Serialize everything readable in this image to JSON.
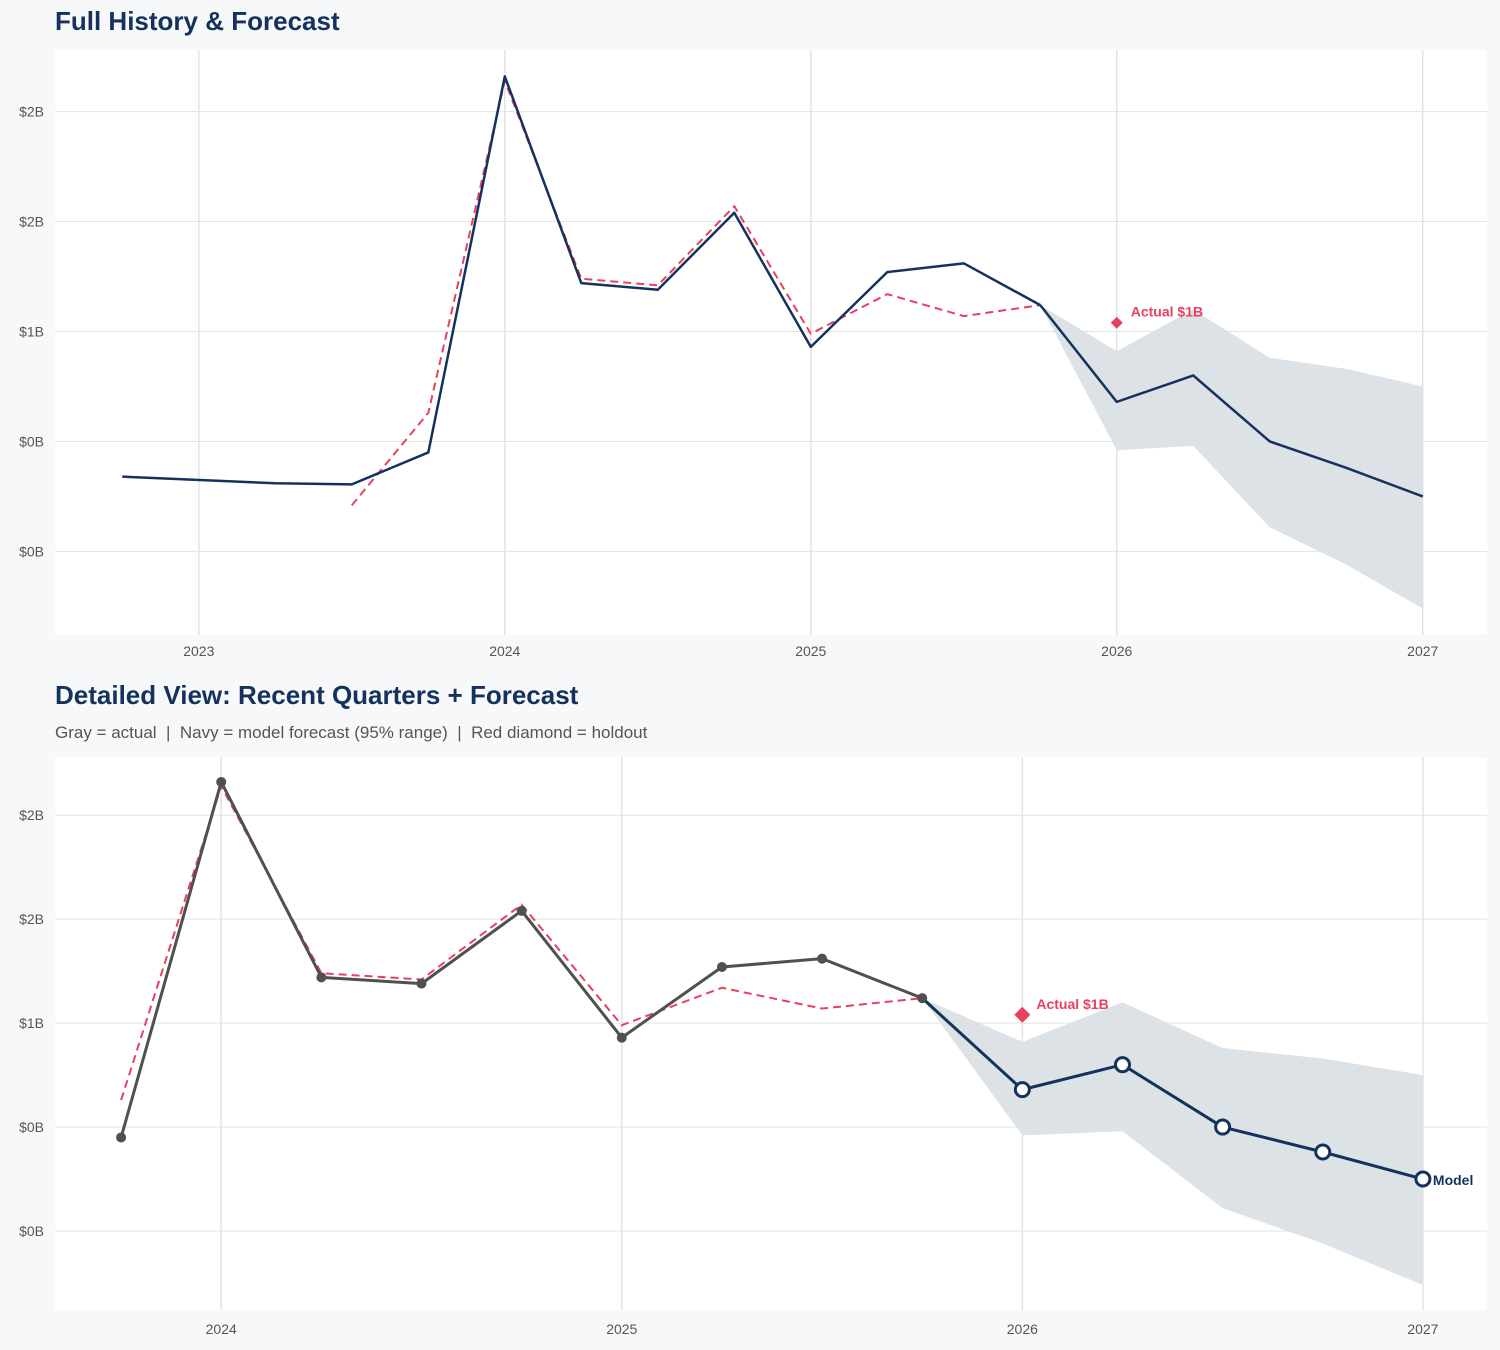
{
  "colors": {
    "navy": "#14325c",
    "red": "#e8415f",
    "gray": "#505050",
    "band": "#dbe0e6",
    "grid": "#e3e3e3"
  },
  "chart_data": [
    {
      "type": "line",
      "title": "Full History & Forecast",
      "subtitle": "",
      "xlim": [
        2022.53,
        2027.21
      ],
      "ylim": [
        -0.38,
        2.28
      ],
      "grid": true,
      "x_ticks": [
        2023,
        2024,
        2025,
        2026,
        2027
      ],
      "x_tick_labels": [
        "2023",
        "2024",
        "2025",
        "2026",
        "2027"
      ],
      "y_ticks": [
        2.0,
        1.5,
        1.0,
        0.5,
        0.0
      ],
      "y_tick_labels": [
        "$2B",
        "$2B",
        "$1B",
        "$0B",
        "$0B"
      ],
      "markers": false,
      "series": [
        {
          "role": "actual",
          "color": "#14325c",
          "style": "solid",
          "x": [
            2022.75,
            2023.25,
            2023.5,
            2023.75,
            2024.0,
            2024.25,
            2024.5,
            2024.75,
            2025.0,
            2025.25,
            2025.5,
            2025.75
          ],
          "y": [
            0.34,
            0.31,
            0.305,
            0.45,
            2.16,
            1.22,
            1.19,
            1.54,
            0.93,
            1.27,
            1.31,
            1.12
          ]
        },
        {
          "role": "fitted",
          "color": "#e8415f",
          "style": "dashed",
          "x": [
            2023.5,
            2023.75,
            2024.0,
            2024.25,
            2024.5,
            2024.75,
            2025.0,
            2025.25,
            2025.5,
            2025.75
          ],
          "y": [
            0.21,
            0.63,
            2.14,
            1.24,
            1.21,
            1.57,
            0.99,
            1.17,
            1.07,
            1.12
          ]
        },
        {
          "role": "forecast",
          "color": "#14325c",
          "style": "solid",
          "x": [
            2025.75,
            2026.0,
            2026.25,
            2026.5,
            2026.75,
            2027.0
          ],
          "y": [
            1.12,
            0.68,
            0.8,
            0.5,
            0.38,
            0.25
          ]
        }
      ],
      "band": {
        "x": [
          2025.75,
          2026.0,
          2026.25,
          2026.5,
          2026.75,
          2027.0
        ],
        "upper": [
          1.12,
          0.91,
          1.1,
          0.88,
          0.83,
          0.75
        ],
        "lower": [
          1.12,
          0.46,
          0.48,
          0.11,
          -0.06,
          -0.26
        ]
      },
      "holdout": {
        "x": 2026.0,
        "y": 1.04,
        "label": "Actual $1B"
      },
      "end_label": ""
    },
    {
      "type": "line",
      "title": "Detailed View: Recent Quarters + Forecast",
      "subtitle": "Gray = actual  |  Navy = model forecast (95% range)  |  Red diamond = holdout",
      "xlim": [
        2023.585,
        2027.16
      ],
      "ylim": [
        -0.38,
        2.28
      ],
      "grid": true,
      "x_ticks": [
        2024,
        2025,
        2026,
        2027
      ],
      "x_tick_labels": [
        "2024",
        "2025",
        "2026",
        "2027"
      ],
      "y_ticks": [
        2.0,
        1.5,
        1.0,
        0.5,
        0.0
      ],
      "y_tick_labels": [
        "$2B",
        "$2B",
        "$1B",
        "$0B",
        "$0B"
      ],
      "markers": true,
      "series": [
        {
          "role": "actual",
          "color": "#505050",
          "style": "solid",
          "x": [
            2023.75,
            2024.0,
            2024.25,
            2024.5,
            2024.75,
            2025.0,
            2025.25,
            2025.5,
            2025.75
          ],
          "y": [
            0.45,
            2.16,
            1.22,
            1.19,
            1.54,
            0.93,
            1.27,
            1.31,
            1.12
          ]
        },
        {
          "role": "fitted",
          "color": "#e8415f",
          "style": "dashed",
          "x": [
            2023.75,
            2024.0,
            2024.25,
            2024.5,
            2024.75,
            2025.0,
            2025.25,
            2025.5,
            2025.75
          ],
          "y": [
            0.63,
            2.14,
            1.24,
            1.21,
            1.57,
            0.99,
            1.17,
            1.07,
            1.12
          ]
        },
        {
          "role": "forecast",
          "color": "#14325c",
          "style": "solid",
          "x": [
            2025.75,
            2026.0,
            2026.25,
            2026.5,
            2026.75,
            2027.0
          ],
          "y": [
            1.12,
            0.68,
            0.8,
            0.5,
            0.38,
            0.25
          ]
        }
      ],
      "band": {
        "x": [
          2025.75,
          2026.0,
          2026.25,
          2026.5,
          2026.75,
          2027.0
        ],
        "upper": [
          1.12,
          0.91,
          1.1,
          0.88,
          0.83,
          0.75
        ],
        "lower": [
          1.12,
          0.46,
          0.48,
          0.11,
          -0.06,
          -0.26
        ]
      },
      "holdout": {
        "x": 2026.0,
        "y": 1.04,
        "label": "Actual $1B"
      },
      "end_label": "Model"
    }
  ]
}
